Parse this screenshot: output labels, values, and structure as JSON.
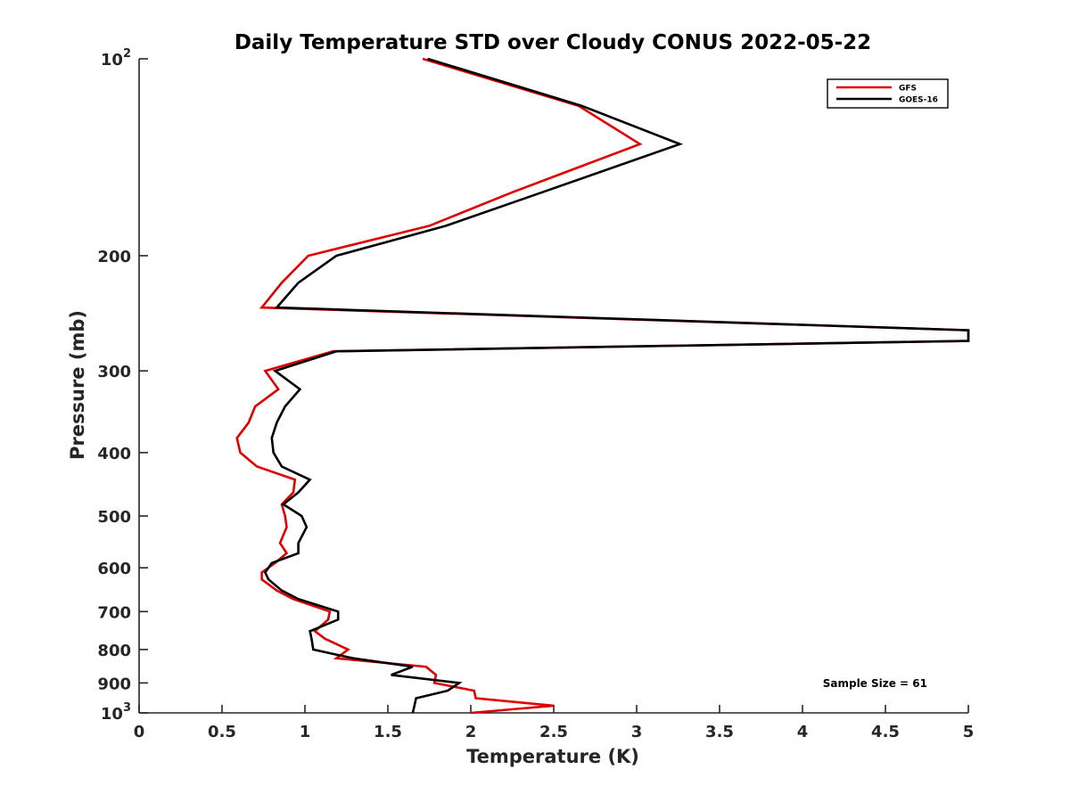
{
  "chart_data": {
    "type": "line",
    "title": "Daily Temperature STD over Cloudy CONUS 2022-05-22",
    "xlabel": "Temperature (K)",
    "ylabel": "Pressure (mb)",
    "xlim": [
      0,
      5
    ],
    "ylim": [
      100,
      1000
    ],
    "y_scale": "log",
    "y_reversed": true,
    "x_ticks": [
      "0",
      "0.5",
      "1",
      "1.5",
      "2",
      "2.5",
      "3",
      "3.5",
      "4",
      "4.5",
      "5"
    ],
    "y_ticks": [
      {
        "value": 100,
        "label": "10",
        "sup": "2"
      },
      {
        "value": 200,
        "label": "200",
        "sup": ""
      },
      {
        "value": 300,
        "label": "300",
        "sup": ""
      },
      {
        "value": 400,
        "label": "400",
        "sup": ""
      },
      {
        "value": 500,
        "label": "500",
        "sup": ""
      },
      {
        "value": 600,
        "label": "600",
        "sup": ""
      },
      {
        "value": 700,
        "label": "700",
        "sup": ""
      },
      {
        "value": 800,
        "label": "800",
        "sup": ""
      },
      {
        "value": 900,
        "label": "900",
        "sup": ""
      },
      {
        "value": 1000,
        "label": "10",
        "sup": "3"
      }
    ],
    "grid": false,
    "legend_position": "top-right",
    "annotation": "Sample Size = 61",
    "series": [
      {
        "name": "GFS",
        "color": "#e00000",
        "points": [
          [
            1.71,
            100
          ],
          [
            2.65,
            118
          ],
          [
            3.02,
            135
          ],
          [
            2.25,
            160
          ],
          [
            1.75,
            180
          ],
          [
            1.02,
            200
          ],
          [
            0.86,
            220
          ],
          [
            0.74,
            240
          ],
          [
            5.0,
            260
          ],
          [
            5.0,
            270
          ],
          [
            1.17,
            280
          ],
          [
            0.76,
            300
          ],
          [
            0.84,
            320
          ],
          [
            0.7,
            340
          ],
          [
            0.66,
            360
          ],
          [
            0.59,
            380
          ],
          [
            0.61,
            400
          ],
          [
            0.71,
            420
          ],
          [
            0.94,
            440
          ],
          [
            0.93,
            460
          ],
          [
            0.86,
            480
          ],
          [
            0.88,
            500
          ],
          [
            0.89,
            520
          ],
          [
            0.85,
            550
          ],
          [
            0.89,
            570
          ],
          [
            0.82,
            590
          ],
          [
            0.74,
            610
          ],
          [
            0.74,
            625
          ],
          [
            0.83,
            650
          ],
          [
            0.93,
            670
          ],
          [
            1.15,
            700
          ],
          [
            1.14,
            720
          ],
          [
            1.06,
            750
          ],
          [
            1.12,
            770
          ],
          [
            1.26,
            800
          ],
          [
            1.19,
            825
          ],
          [
            1.73,
            850
          ],
          [
            1.79,
            875
          ],
          [
            1.78,
            900
          ],
          [
            2.02,
            925
          ],
          [
            2.03,
            950
          ],
          [
            2.5,
            975
          ],
          [
            2.0,
            1000
          ]
        ]
      },
      {
        "name": "GOES-16",
        "color": "#000000",
        "points": [
          [
            1.74,
            100
          ],
          [
            2.67,
            118
          ],
          [
            3.26,
            135
          ],
          [
            2.43,
            160
          ],
          [
            1.85,
            180
          ],
          [
            1.19,
            200
          ],
          [
            0.96,
            220
          ],
          [
            0.83,
            240
          ],
          [
            5.0,
            260
          ],
          [
            5.0,
            270
          ],
          [
            1.19,
            280
          ],
          [
            0.82,
            300
          ],
          [
            0.97,
            320
          ],
          [
            0.88,
            340
          ],
          [
            0.83,
            360
          ],
          [
            0.8,
            380
          ],
          [
            0.81,
            400
          ],
          [
            0.86,
            420
          ],
          [
            1.03,
            440
          ],
          [
            0.96,
            460
          ],
          [
            0.87,
            480
          ],
          [
            0.98,
            500
          ],
          [
            1.01,
            520
          ],
          [
            0.96,
            550
          ],
          [
            0.96,
            570
          ],
          [
            0.8,
            590
          ],
          [
            0.76,
            610
          ],
          [
            0.78,
            625
          ],
          [
            0.86,
            650
          ],
          [
            0.96,
            670
          ],
          [
            1.2,
            700
          ],
          [
            1.2,
            720
          ],
          [
            1.03,
            750
          ],
          [
            1.04,
            770
          ],
          [
            1.05,
            800
          ],
          [
            1.29,
            825
          ],
          [
            1.65,
            850
          ],
          [
            1.52,
            875
          ],
          [
            1.93,
            900
          ],
          [
            1.86,
            925
          ],
          [
            1.67,
            950
          ],
          [
            1.66,
            975
          ],
          [
            1.65,
            1000
          ]
        ]
      }
    ]
  }
}
